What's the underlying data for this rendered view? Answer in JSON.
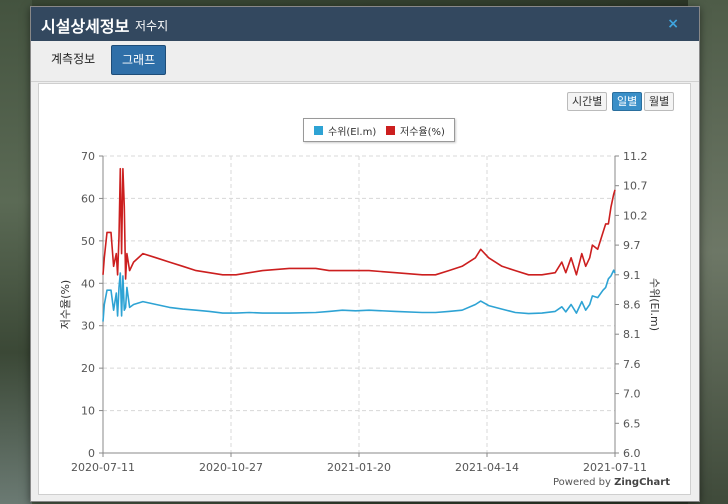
{
  "dialog": {
    "title": "시설상세정보",
    "subtitle": "저수지",
    "close_icon": "×"
  },
  "tabs": [
    {
      "label": "계측정보",
      "active": false
    },
    {
      "label": "그래프",
      "active": true
    }
  ],
  "period_buttons": [
    {
      "label": "시간별",
      "active": false
    },
    {
      "label": "일별",
      "active": true
    },
    {
      "label": "월별",
      "active": false
    }
  ],
  "powered_by": {
    "prefix": "Powered by",
    "brand": "ZingChart"
  },
  "chart_data": {
    "type": "line",
    "y_left_label": "저수율(%)",
    "y_right_label": "수위(El.m)",
    "y_left_range": [
      0,
      70
    ],
    "y_left_ticks": [
      "0",
      "10",
      "20",
      "30",
      "40",
      "50",
      "60",
      "70"
    ],
    "y_right_range": [
      6.0,
      11.2
    ],
    "y_right_ticks": [
      "6.0",
      "6.5",
      "7.0",
      "7.6",
      "8.1",
      "8.6",
      "9.1",
      "9.7",
      "10.2",
      "10.7",
      "11.2"
    ],
    "x_ticks": [
      "2020-07-11",
      "2020-10-27",
      "2021-01-20",
      "2021-04-14",
      "2021-07-11"
    ],
    "grid": true,
    "legend_position": "top-center",
    "series": [
      {
        "name": "수위(El.m)",
        "color": "#2ea3d4",
        "axis": "right",
        "values": [
          [
            0,
            8.3
          ],
          [
            1,
            8.6
          ],
          [
            3,
            8.85
          ],
          [
            6,
            8.85
          ],
          [
            8,
            8.5
          ],
          [
            10,
            8.8
          ],
          [
            11,
            8.4
          ],
          [
            12,
            8.9
          ],
          [
            13,
            9.15
          ],
          [
            14,
            8.4
          ],
          [
            15,
            9.1
          ],
          [
            16,
            8.5
          ],
          [
            17,
            8.55
          ],
          [
            18,
            8.9
          ],
          [
            20,
            8.55
          ],
          [
            23,
            8.6
          ],
          [
            30,
            8.65
          ],
          [
            40,
            8.6
          ],
          [
            50,
            8.55
          ],
          [
            60,
            8.52
          ],
          [
            70,
            8.5
          ],
          [
            80,
            8.48
          ],
          [
            90,
            8.45
          ],
          [
            100,
            8.45
          ],
          [
            110,
            8.46
          ],
          [
            120,
            8.45
          ],
          [
            140,
            8.45
          ],
          [
            160,
            8.46
          ],
          [
            170,
            8.48
          ],
          [
            180,
            8.5
          ],
          [
            190,
            8.49
          ],
          [
            200,
            8.5
          ],
          [
            220,
            8.48
          ],
          [
            240,
            8.46
          ],
          [
            250,
            8.46
          ],
          [
            260,
            8.48
          ],
          [
            270,
            8.5
          ],
          [
            280,
            8.6
          ],
          [
            284,
            8.66
          ],
          [
            290,
            8.58
          ],
          [
            300,
            8.52
          ],
          [
            310,
            8.46
          ],
          [
            320,
            8.44
          ],
          [
            330,
            8.45
          ],
          [
            340,
            8.48
          ],
          [
            345,
            8.56
          ],
          [
            348,
            8.47
          ],
          [
            352,
            8.6
          ],
          [
            356,
            8.45
          ],
          [
            360,
            8.65
          ],
          [
            363,
            8.5
          ],
          [
            366,
            8.6
          ],
          [
            368,
            8.75
          ],
          [
            372,
            8.72
          ],
          [
            376,
            8.85
          ],
          [
            378,
            8.9
          ],
          [
            380,
            9.05
          ],
          [
            382,
            9.1
          ],
          [
            384,
            9.2
          ],
          [
            385,
            9.15
          ]
        ]
      },
      {
        "name": "저수율(%)",
        "color": "#cc1f1f",
        "axis": "left",
        "values": [
          [
            0,
            42
          ],
          [
            1,
            46
          ],
          [
            3,
            52
          ],
          [
            6,
            52
          ],
          [
            8,
            44
          ],
          [
            10,
            47
          ],
          [
            11,
            42
          ],
          [
            12,
            51
          ],
          [
            13,
            67
          ],
          [
            14,
            47
          ],
          [
            15,
            67
          ],
          [
            16,
            58
          ],
          [
            17,
            41
          ],
          [
            18,
            47
          ],
          [
            20,
            43
          ],
          [
            23,
            45
          ],
          [
            30,
            47
          ],
          [
            40,
            46
          ],
          [
            50,
            45
          ],
          [
            60,
            44
          ],
          [
            70,
            43
          ],
          [
            80,
            42.5
          ],
          [
            90,
            42
          ],
          [
            100,
            42
          ],
          [
            110,
            42.5
          ],
          [
            120,
            43
          ],
          [
            140,
            43.5
          ],
          [
            160,
            43.5
          ],
          [
            170,
            43
          ],
          [
            180,
            43
          ],
          [
            190,
            43
          ],
          [
            200,
            43
          ],
          [
            220,
            42.5
          ],
          [
            240,
            42
          ],
          [
            250,
            42
          ],
          [
            260,
            43
          ],
          [
            270,
            44
          ],
          [
            280,
            46
          ],
          [
            284,
            48
          ],
          [
            290,
            46
          ],
          [
            300,
            44
          ],
          [
            310,
            43
          ],
          [
            320,
            42
          ],
          [
            330,
            42
          ],
          [
            340,
            42.5
          ],
          [
            345,
            45
          ],
          [
            348,
            42.5
          ],
          [
            352,
            46
          ],
          [
            356,
            42
          ],
          [
            360,
            47
          ],
          [
            363,
            44
          ],
          [
            366,
            46
          ],
          [
            368,
            49
          ],
          [
            372,
            48
          ],
          [
            376,
            52
          ],
          [
            378,
            54
          ],
          [
            380,
            54
          ],
          [
            382,
            58
          ],
          [
            384,
            61
          ],
          [
            385,
            62
          ]
        ]
      }
    ]
  }
}
